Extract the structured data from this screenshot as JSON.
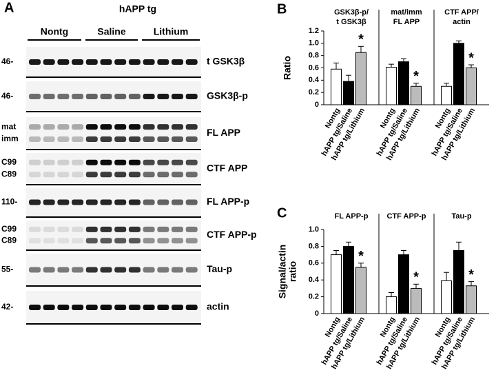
{
  "blot": {
    "panel": "A",
    "header": "hAPP tg",
    "groups": [
      "Nontg",
      "Saline",
      "Lithium"
    ],
    "rows": [
      {
        "label": "t GSK3β",
        "markers": [
          "46-"
        ]
      },
      {
        "label": "GSK3β-p",
        "markers": [
          "46-"
        ]
      },
      {
        "label": "FL APP",
        "markers": [
          "mat",
          "imm"
        ]
      },
      {
        "label": "CTF APP",
        "markers": [
          "C99",
          "C89"
        ]
      },
      {
        "label": "FL APP-p",
        "markers": [
          "110-"
        ]
      },
      {
        "label": "CTF APP-p",
        "markers": [
          "C99",
          "C89"
        ]
      },
      {
        "label": "Tau-p",
        "markers": [
          "55-"
        ]
      },
      {
        "label": "actin",
        "markers": [
          "42-"
        ]
      }
    ]
  },
  "chart_data": [
    {
      "type": "bar",
      "panel": "B",
      "ylabel": [
        "Ratio"
      ],
      "categories": [
        [
          "GSK3β-p/",
          "t GSK3β"
        ],
        [
          "mat/imm",
          "FL APP"
        ],
        [
          "CTF APP/",
          "actin"
        ]
      ],
      "ylim": [
        0,
        1.2
      ],
      "yticks": [
        0,
        0.2,
        0.4,
        0.6,
        0.8,
        {
          "value": 1.0,
          "label": "1.0"
        },
        1.2
      ],
      "annotation": "*",
      "series": [
        {
          "name": "Nontg",
          "color": "#ffffff",
          "values": [
            0.58,
            0.61,
            0.3
          ],
          "errors": [
            0.1,
            0.05,
            0.05
          ]
        },
        {
          "name": "hAPP tg/Saline",
          "color": "#000000",
          "values": [
            0.38,
            0.7,
            1.0
          ],
          "errors": [
            0.1,
            0.05,
            0.04
          ]
        },
        {
          "name": "hAPP tg/Lithium",
          "color": "#bbbbbb",
          "values": [
            0.85,
            0.3,
            0.6
          ],
          "errors": [
            0.1,
            0.05,
            0.05
          ],
          "marked": [
            true,
            true,
            true
          ]
        }
      ]
    },
    {
      "type": "bar",
      "panel": "C",
      "ylabel": [
        "Signal/actin",
        "ratio"
      ],
      "categories": [
        [
          "FL APP-p"
        ],
        [
          "CTF APP-p"
        ],
        [
          "Tau-p"
        ]
      ],
      "ylim": [
        0,
        1.0
      ],
      "yticks": [
        0,
        0.2,
        0.4,
        0.6,
        0.8,
        {
          "value": 1.0,
          "label": "1.0"
        }
      ],
      "annotation": "*",
      "series": [
        {
          "name": "Nontg",
          "color": "#ffffff",
          "values": [
            0.7,
            0.2,
            0.39
          ],
          "errors": [
            0.05,
            0.05,
            0.1
          ]
        },
        {
          "name": "hAPP tg/Saline",
          "color": "#000000",
          "values": [
            0.8,
            0.7,
            0.75
          ],
          "errors": [
            0.05,
            0.05,
            0.1
          ]
        },
        {
          "name": "hAPP tg/Lithium",
          "color": "#bbbbbb",
          "values": [
            0.55,
            0.3,
            0.33
          ],
          "errors": [
            0.05,
            0.05,
            0.05
          ],
          "marked": [
            true,
            true,
            true
          ]
        }
      ]
    }
  ]
}
